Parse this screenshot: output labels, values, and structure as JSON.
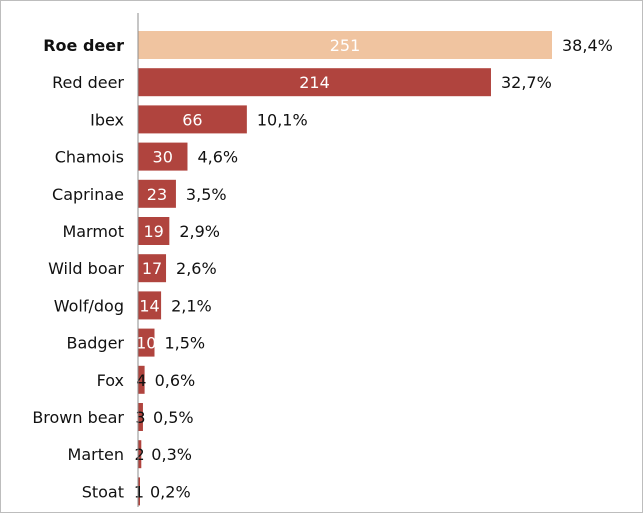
{
  "chart_data": {
    "type": "bar",
    "orientation": "horizontal",
    "categories": [
      "Roe deer",
      "Red deer",
      "Ibex",
      "Chamois",
      "Caprinae",
      "Marmot",
      "Wild boar",
      "Wolf/dog",
      "Badger",
      "Fox",
      "Brown bear",
      "Marten",
      "Stoat"
    ],
    "values": [
      251,
      214,
      66,
      30,
      23,
      19,
      17,
      14,
      10,
      4,
      3,
      2,
      1
    ],
    "percent_labels": [
      "38,4%",
      "32,7%",
      "10,1%",
      "4,6%",
      "3,5%",
      "2,9%",
      "2,6%",
      "2,1%",
      "1,5%",
      "0,6%",
      "0,5%",
      "0,3%",
      "0,2%"
    ],
    "highlighted_category": "Roe deer",
    "xlim": [
      0,
      251
    ],
    "grid": false,
    "legend": "none",
    "colors": {
      "bar": "#b0443e",
      "highlight_bar": "#f0c4a0",
      "axis": "#8c8c8c",
      "value_label_on_bar": "#ffffff",
      "value_label_outside": "#111111"
    }
  }
}
